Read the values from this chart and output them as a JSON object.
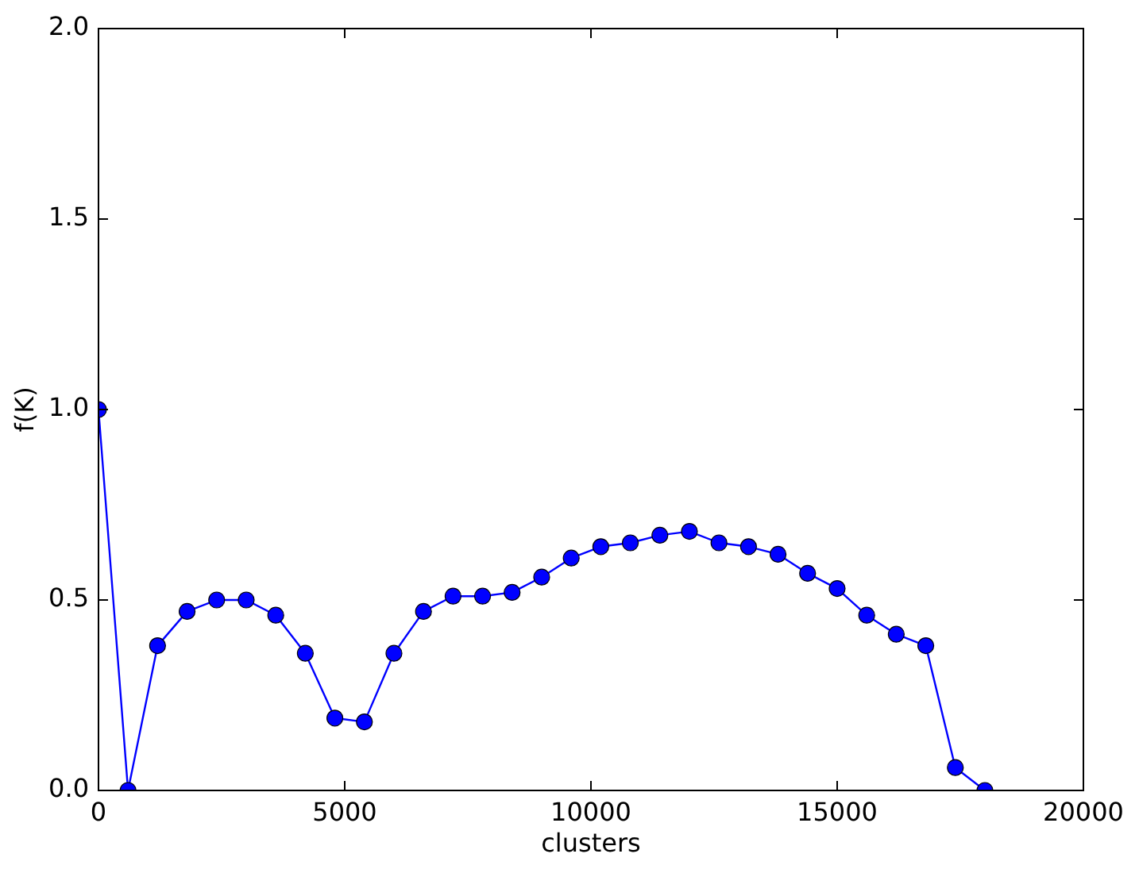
{
  "chart_data": {
    "type": "line",
    "xlabel": "clusters",
    "ylabel": "f(K)",
    "x": [
      0,
      600,
      1200,
      1800,
      2400,
      3000,
      3600,
      4200,
      4800,
      5400,
      6000,
      6600,
      7200,
      7800,
      8400,
      9000,
      9600,
      10200,
      10800,
      11400,
      12000,
      12600,
      13200,
      13800,
      14400,
      15000,
      15600,
      16200,
      16800,
      17400,
      18000
    ],
    "values": [
      1.0,
      0.0,
      0.38,
      0.47,
      0.5,
      0.5,
      0.46,
      0.36,
      0.19,
      0.18,
      0.36,
      0.47,
      0.51,
      0.51,
      0.52,
      0.56,
      0.61,
      0.64,
      0.65,
      0.67,
      0.68,
      0.65,
      0.64,
      0.62,
      0.57,
      0.53,
      0.46,
      0.41,
      0.38,
      0.06,
      0.0
    ],
    "color": "#0000ff",
    "marker": "circle",
    "line_style": "solid",
    "legend": false,
    "xlim": [
      0,
      20000
    ],
    "xticks": [
      0,
      5000,
      10000,
      15000,
      20000
    ],
    "ylim": [
      0,
      2
    ],
    "yticks": [
      {
        "value": 0,
        "label": "0.0"
      },
      0.5,
      {
        "value": 1,
        "label": "1.0"
      },
      1.5,
      {
        "value": 2,
        "label": "2.0"
      }
    ]
  }
}
